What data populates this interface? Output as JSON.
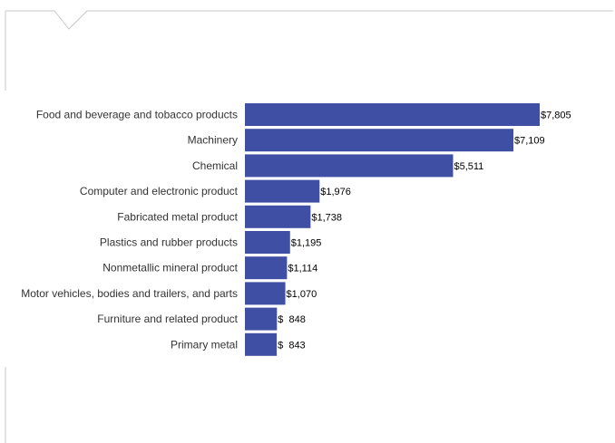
{
  "chart_data": {
    "type": "bar",
    "orientation": "horizontal",
    "categories": [
      "Food and beverage and tobacco products",
      "Machinery",
      "Chemical",
      "Computer and electronic product",
      "Fabricated metal product",
      "Plastics and rubber products",
      "Nonmetallic mineral product",
      "Motor vehicles, bodies and trailers, and parts",
      "Furniture and related product",
      "Primary metal"
    ],
    "values": [
      7805,
      7109,
      5511,
      1976,
      1738,
      1195,
      1114,
      1070,
      848,
      843
    ],
    "value_labels": [
      "$7,805",
      "$7,109",
      "$5,511",
      "$1,976",
      "$1,738",
      "$1,195",
      "$1,114",
      "$1,070",
      "$  848",
      "$  843"
    ],
    "title": "",
    "xlabel": "",
    "ylabel": "",
    "xlim": [
      0,
      7805
    ],
    "grid": false,
    "legend": "none",
    "bar_color": "#3f4fa3"
  },
  "colors": {
    "frame_line": "#c8c8c8",
    "background": "#ffffff"
  }
}
